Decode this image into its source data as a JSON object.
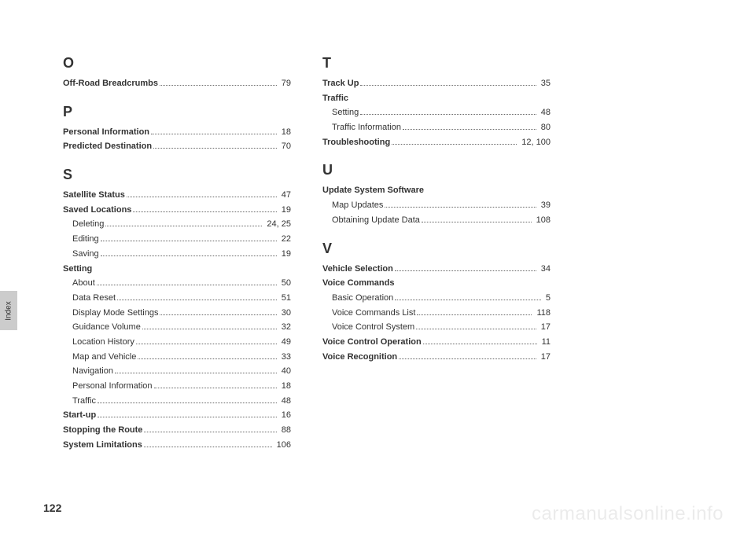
{
  "pageNumber": "122",
  "sideTab": "Index",
  "watermark": "carmanualsonline.info",
  "columns": [
    {
      "sections": [
        {
          "letter": "O",
          "entries": [
            {
              "label": "Off-Road Breadcrumbs",
              "page": "79",
              "bold": true,
              "sub": false
            }
          ]
        },
        {
          "letter": "P",
          "entries": [
            {
              "label": "Personal Information",
              "page": "18",
              "bold": true,
              "sub": false
            },
            {
              "label": "Predicted Destination",
              "page": "70",
              "bold": true,
              "sub": false
            }
          ]
        },
        {
          "letter": "S",
          "entries": [
            {
              "label": "Satellite Status",
              "page": "47",
              "bold": true,
              "sub": false
            },
            {
              "label": "Saved Locations",
              "page": "19",
              "bold": true,
              "sub": false
            },
            {
              "label": "Deleting",
              "page": "24, 25",
              "bold": false,
              "sub": true
            },
            {
              "label": "Editing",
              "page": "22",
              "bold": false,
              "sub": true
            },
            {
              "label": "Saving",
              "page": "19",
              "bold": false,
              "sub": true
            },
            {
              "label": "Setting",
              "page": "",
              "bold": true,
              "sub": false
            },
            {
              "label": "About",
              "page": "50",
              "bold": false,
              "sub": true
            },
            {
              "label": "Data Reset",
              "page": "51",
              "bold": false,
              "sub": true
            },
            {
              "label": "Display Mode Settings",
              "page": "30",
              "bold": false,
              "sub": true
            },
            {
              "label": "Guidance Volume",
              "page": "32",
              "bold": false,
              "sub": true
            },
            {
              "label": "Location History",
              "page": "49",
              "bold": false,
              "sub": true
            },
            {
              "label": "Map and Vehicle",
              "page": "33",
              "bold": false,
              "sub": true
            },
            {
              "label": "Navigation",
              "page": "40",
              "bold": false,
              "sub": true
            },
            {
              "label": "Personal Information",
              "page": "18",
              "bold": false,
              "sub": true
            },
            {
              "label": "Traffic",
              "page": "48",
              "bold": false,
              "sub": true
            },
            {
              "label": "Start-up",
              "page": "16",
              "bold": true,
              "sub": false
            },
            {
              "label": "Stopping the Route",
              "page": "88",
              "bold": true,
              "sub": false
            },
            {
              "label": "System Limitations",
              "page": "106",
              "bold": true,
              "sub": false
            }
          ]
        }
      ]
    },
    {
      "sections": [
        {
          "letter": "T",
          "entries": [
            {
              "label": "Track Up",
              "page": "35",
              "bold": true,
              "sub": false
            },
            {
              "label": "Traffic",
              "page": "",
              "bold": true,
              "sub": false
            },
            {
              "label": "Setting",
              "page": "48",
              "bold": false,
              "sub": true
            },
            {
              "label": "Traffic Information",
              "page": "80",
              "bold": false,
              "sub": true
            },
            {
              "label": "Troubleshooting",
              "page": "12, 100",
              "bold": true,
              "sub": false
            }
          ]
        },
        {
          "letter": "U",
          "entries": [
            {
              "label": "Update System Software",
              "page": "",
              "bold": true,
              "sub": false
            },
            {
              "label": "Map Updates",
              "page": "39",
              "bold": false,
              "sub": true
            },
            {
              "label": "Obtaining Update Data",
              "page": "108",
              "bold": false,
              "sub": true
            }
          ]
        },
        {
          "letter": "V",
          "entries": [
            {
              "label": "Vehicle Selection",
              "page": "34",
              "bold": true,
              "sub": false
            },
            {
              "label": "Voice Commands",
              "page": "",
              "bold": true,
              "sub": false
            },
            {
              "label": "Basic Operation",
              "page": "5",
              "bold": false,
              "sub": true
            },
            {
              "label": "Voice Commands List",
              "page": "118",
              "bold": false,
              "sub": true
            },
            {
              "label": "Voice Control System",
              "page": "17",
              "bold": false,
              "sub": true
            },
            {
              "label": "Voice Control Operation",
              "page": "11",
              "bold": true,
              "sub": false
            },
            {
              "label": "Voice Recognition",
              "page": "17",
              "bold": true,
              "sub": false
            }
          ]
        }
      ]
    }
  ]
}
